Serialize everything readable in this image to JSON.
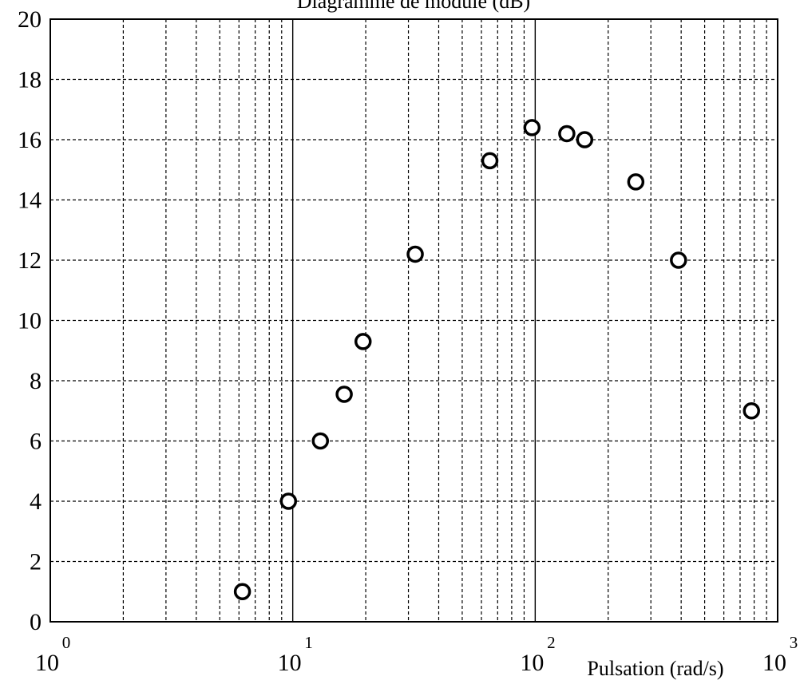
{
  "chart_data": {
    "type": "scatter",
    "title": "Diagramme de module (dB)",
    "xlabel": "Pulsation (rad/s)",
    "ylabel": "",
    "xscale": "log",
    "xlim": [
      1,
      1000
    ],
    "ylim": [
      0,
      20
    ],
    "grid": true,
    "marker": "open-circle",
    "x_ticks": [
      {
        "base": "10",
        "exp": "0"
      },
      {
        "base": "10",
        "exp": "1"
      },
      {
        "base": "10",
        "exp": "2"
      },
      {
        "base": "10",
        "exp": "3"
      }
    ],
    "y_ticks": [
      "0",
      "2",
      "4",
      "6",
      "8",
      "10",
      "12",
      "14",
      "16",
      "18",
      "20"
    ],
    "points": [
      {
        "x": 6.2,
        "y": 1.0
      },
      {
        "x": 9.6,
        "y": 4.0
      },
      {
        "x": 13.0,
        "y": 6.0
      },
      {
        "x": 16.3,
        "y": 7.55
      },
      {
        "x": 19.5,
        "y": 9.3
      },
      {
        "x": 32.0,
        "y": 12.2
      },
      {
        "x": 65.0,
        "y": 15.3
      },
      {
        "x": 97.0,
        "y": 16.4
      },
      {
        "x": 135.0,
        "y": 16.2
      },
      {
        "x": 160.0,
        "y": 16.0
      },
      {
        "x": 260.0,
        "y": 14.6
      },
      {
        "x": 390.0,
        "y": 12.0
      },
      {
        "x": 780.0,
        "y": 7.0
      }
    ]
  }
}
